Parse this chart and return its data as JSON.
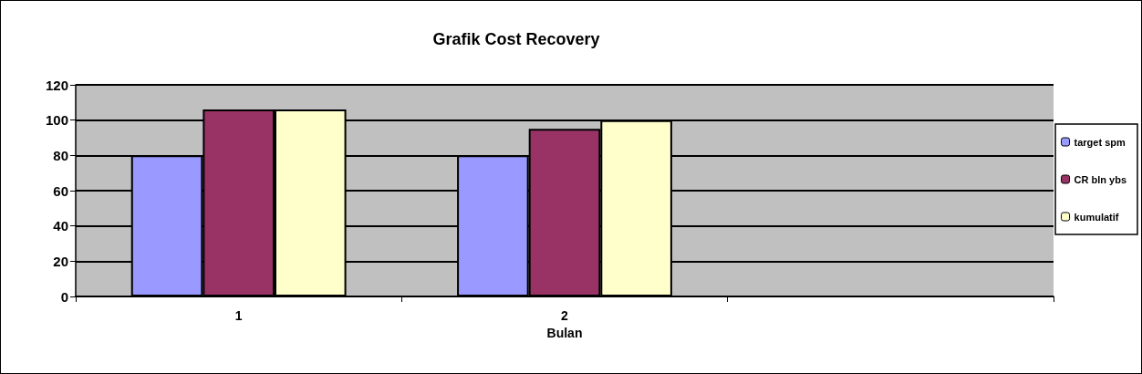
{
  "chart_data": {
    "type": "bar",
    "title": "Grafik Cost Recovery",
    "xlabel": "Bulan",
    "categories": [
      "1",
      "2",
      null
    ],
    "series": [
      {
        "name": "target spm",
        "color": "#9999ff",
        "values": [
          80,
          80,
          null
        ]
      },
      {
        "name": "CR bln ybs",
        "color": "#993366",
        "values": [
          106,
          95,
          null
        ]
      },
      {
        "name": "kumulatif",
        "color": "#ffffcc",
        "values": [
          106,
          100,
          null
        ]
      }
    ],
    "ylim": [
      0,
      120
    ],
    "yticks": [
      0,
      20,
      40,
      60,
      80,
      100,
      120
    ],
    "grid": "y",
    "legend": "right"
  }
}
